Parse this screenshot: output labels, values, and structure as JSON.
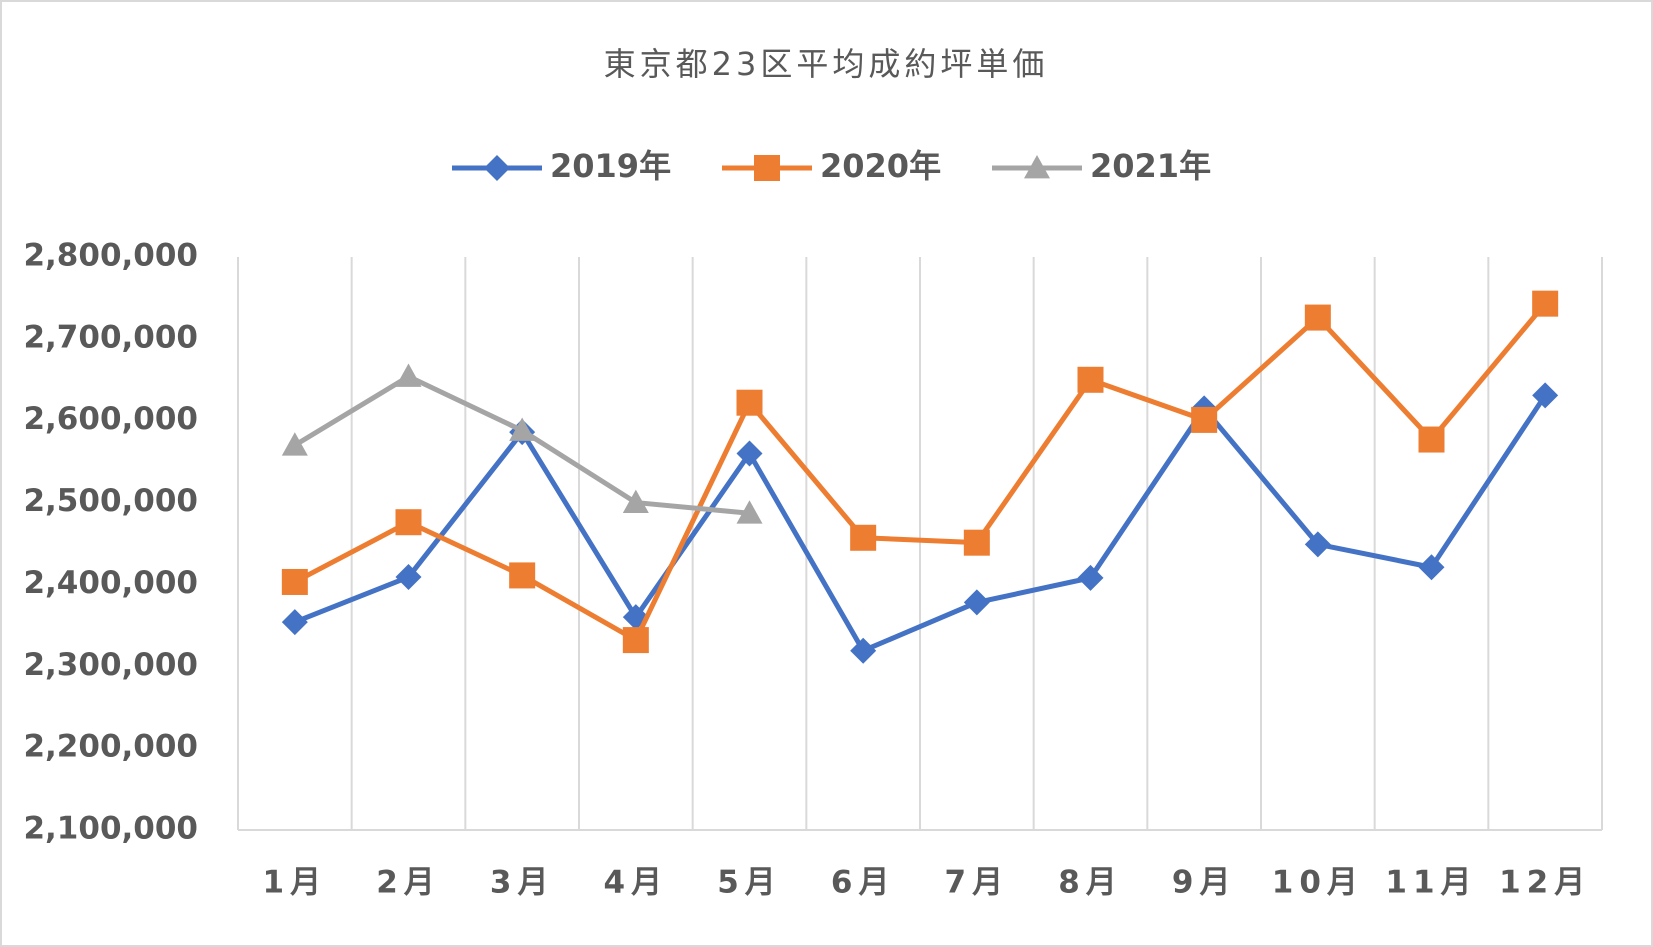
{
  "chart_data": {
    "type": "line",
    "title": "東京都23区平均成約坪単価",
    "categories": [
      "1月",
      "2月",
      "3月",
      "4月",
      "5月",
      "6月",
      "7月",
      "8月",
      "9月",
      "10月",
      "11月",
      "12月"
    ],
    "series": [
      {
        "name": "2019年",
        "color": "#4472c4",
        "marker": "diamond",
        "values": [
          2354000,
          2409000,
          2586000,
          2360000,
          2560000,
          2319000,
          2378000,
          2408000,
          2615000,
          2449000,
          2421000,
          2631000
        ]
      },
      {
        "name": "2020年",
        "color": "#ed7d31",
        "marker": "square",
        "values": [
          2403000,
          2476000,
          2411000,
          2332000,
          2622000,
          2457000,
          2451000,
          2650000,
          2601000,
          2726000,
          2577000,
          2743000
        ]
      },
      {
        "name": "2021年",
        "color": "#a5a5a5",
        "marker": "triangle",
        "values": [
          2570000,
          2654000,
          2588000,
          2500000,
          2487000,
          null,
          null,
          null,
          null,
          null,
          null,
          null
        ]
      }
    ],
    "ylim": [
      2100000,
      2800000
    ],
    "yticks": [
      {
        "value": 2100000,
        "label": "2,100,000"
      },
      {
        "value": 2200000,
        "label": "2,200,000"
      },
      {
        "value": 2300000,
        "label": "2,300,000"
      },
      {
        "value": 2400000,
        "label": "2,400,000"
      },
      {
        "value": 2500000,
        "label": "2,500,000"
      },
      {
        "value": 2600000,
        "label": "2,600,000"
      },
      {
        "value": 2700000,
        "label": "2,700,000"
      },
      {
        "value": 2800000,
        "label": "2,800,000"
      }
    ],
    "grid": "vertical",
    "legend": "top"
  }
}
